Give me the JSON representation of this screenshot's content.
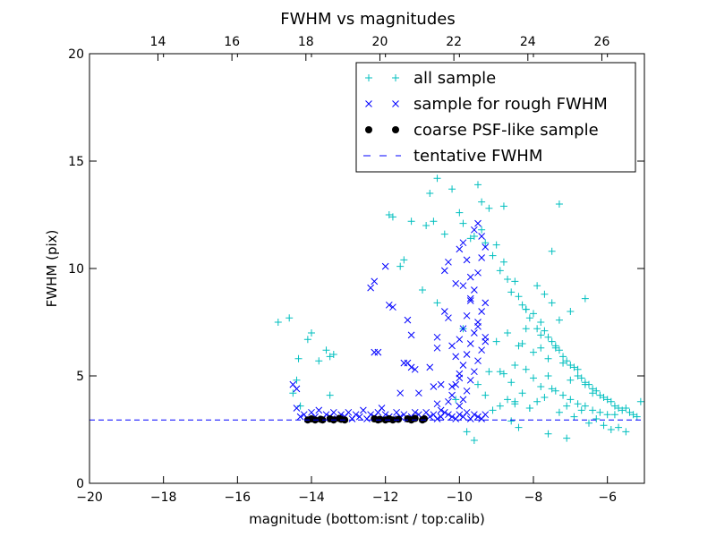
{
  "chart_data": {
    "type": "scatter",
    "title": "FWHM vs magnitudes",
    "xlabel": "magnitude (bottom:isnt / top:calib)",
    "ylabel": "FWHM (pix)",
    "xlim": [
      -20,
      -5
    ],
    "ylim": [
      0,
      20
    ],
    "x_ticks": [
      -20,
      -18,
      -16,
      -14,
      -12,
      -10,
      -8,
      -6
    ],
    "x_tick_labels": [
      "−20",
      "−18",
      "−16",
      "−14",
      "−12",
      "−10",
      "−8",
      "−6"
    ],
    "y_ticks": [
      0,
      5,
      10,
      15,
      20
    ],
    "y_tick_labels": [
      "0",
      "5",
      "10",
      "15",
      "20"
    ],
    "top_axis": {
      "offset": 32.15,
      "ticks": [
        14,
        16,
        18,
        20,
        22,
        24,
        26
      ],
      "tick_labels": [
        "14",
        "16",
        "18",
        "20",
        "22",
        "24",
        "26"
      ]
    },
    "grid": false,
    "legend_position": "top-right",
    "series": [
      {
        "name": "all sample",
        "marker": "plus",
        "color": "#00bfbf",
        "x": [
          -14.9,
          -14.6,
          -14.5,
          -14.4,
          -14.35,
          -14.3,
          -14.1,
          -14.0,
          -13.8,
          -13.6,
          -13.5,
          -13.5,
          -13.4,
          -11.9,
          -11.8,
          -11.6,
          -11.5,
          -11.3,
          -10.9,
          -10.8,
          -10.6,
          -10.4,
          -10.2,
          -10.0,
          -9.9,
          -9.8,
          -9.7,
          -9.6,
          -9.5,
          -9.4,
          -9.3,
          -9.2,
          -9.1,
          -9.0,
          -8.9,
          -8.8,
          -8.7,
          -8.6,
          -8.5,
          -8.4,
          -8.3,
          -8.2,
          -8.1,
          -8.0,
          -7.9,
          -7.8,
          -7.7,
          -7.6,
          -7.5,
          -7.4,
          -7.3,
          -7.2,
          -7.1,
          -7.0,
          -6.9,
          -6.8,
          -6.7,
          -6.6,
          -6.5,
          -6.4,
          -6.3,
          -6.2,
          -6.1,
          -6.0,
          -5.9,
          -5.8,
          -5.7,
          -5.6,
          -5.5,
          -5.4,
          -5.3,
          -5.2,
          -5.1,
          -9.2,
          -9.0,
          -8.8,
          -8.6,
          -8.4,
          -8.2,
          -8.0,
          -7.8,
          -7.6,
          -7.4,
          -7.2,
          -7.0,
          -6.8,
          -6.6,
          -6.4,
          -6.2,
          -6.0,
          -5.8,
          -9.3,
          -9.1,
          -8.9,
          -8.7,
          -8.5,
          -8.3,
          -8.1,
          -7.9,
          -7.7,
          -7.5,
          -7.3,
          -7.1,
          -6.9,
          -6.7,
          -6.5,
          -6.3,
          -6.1,
          -5.9,
          -5.7,
          -5.5,
          -8.6,
          -8.4,
          -8.2,
          -8.0,
          -7.8,
          -7.6,
          -7.4,
          -7.2,
          -7.0,
          -6.8,
          -6.6,
          -6.4,
          -8.5,
          -8.1,
          -7.9,
          -7.7,
          -7.5,
          -7.3,
          -8.7,
          -8.3,
          -7.6,
          -7.1,
          -9.6,
          -9.8,
          -10.1,
          -9.5,
          -8.9,
          -8.2,
          -7.5,
          -10.4,
          -10.7,
          -11.0,
          -10.6,
          -9.9,
          -7.8,
          -8.5,
          -6.9,
          -8.0,
          -7.3,
          -8.8,
          -9.4,
          -7.0,
          -6.6
        ],
        "y": [
          7.5,
          7.7,
          4.2,
          4.8,
          5.8,
          3.6,
          6.7,
          7.0,
          5.7,
          6.2,
          5.9,
          4.1,
          6.0,
          12.5,
          12.4,
          10.1,
          10.4,
          12.2,
          12.0,
          13.5,
          14.2,
          15.4,
          13.7,
          12.6,
          12.1,
          16.1,
          11.4,
          11.5,
          13.9,
          13.1,
          11.2,
          12.8,
          10.6,
          11.1,
          9.9,
          10.3,
          9.5,
          8.9,
          9.4,
          8.7,
          8.3,
          8.1,
          7.7,
          7.9,
          7.2,
          7.5,
          7.1,
          6.8,
          6.6,
          6.4,
          6.2,
          5.9,
          5.7,
          5.5,
          5.4,
          5.0,
          4.9,
          4.7,
          4.6,
          4.4,
          4.3,
          4.1,
          4.0,
          3.9,
          3.8,
          3.6,
          3.5,
          3.4,
          3.5,
          3.3,
          3.2,
          3.1,
          3.8,
          5.2,
          6.6,
          5.1,
          4.7,
          6.4,
          5.3,
          4.9,
          4.5,
          5.0,
          4.3,
          4.1,
          3.9,
          3.7,
          3.6,
          3.4,
          3.3,
          3.2,
          3.2,
          4.1,
          3.4,
          3.6,
          3.9,
          3.7,
          4.2,
          3.5,
          3.8,
          4.0,
          4.4,
          3.3,
          3.6,
          3.1,
          3.4,
          2.8,
          3.0,
          2.7,
          2.5,
          2.6,
          2.4,
          2.9,
          2.6,
          7.2,
          6.1,
          6.9,
          5.8,
          6.3,
          5.6,
          4.8,
          5.3,
          4.6,
          4.2,
          3.8,
          3.5,
          9.2,
          8.8,
          8.4,
          7.6,
          7.0,
          6.5,
          2.3,
          2.1,
          2.0,
          2.4,
          3.9,
          4.6,
          5.2,
          8.1,
          10.8,
          11.6,
          12.2,
          9.0,
          8.4,
          7.2,
          6.3,
          5.5,
          16.5,
          17.1,
          13.0,
          12.9,
          11.8,
          8.0,
          8.6
        ]
      },
      {
        "name": "sample for rough FWHM",
        "marker": "x",
        "color": "#0000ff",
        "x": [
          -14.4,
          -14.3,
          -14.2,
          -14.1,
          -14.0,
          -13.9,
          -13.8,
          -13.7,
          -13.6,
          -13.5,
          -13.4,
          -13.3,
          -13.2,
          -13.1,
          -13.0,
          -12.9,
          -12.8,
          -12.7,
          -12.6,
          -12.5,
          -12.4,
          -12.3,
          -12.2,
          -12.1,
          -12.0,
          -11.9,
          -11.8,
          -11.7,
          -11.6,
          -11.5,
          -11.4,
          -11.3,
          -11.2,
          -11.1,
          -11.0,
          -10.9,
          -10.8,
          -10.7,
          -10.6,
          -10.5,
          -10.4,
          -10.3,
          -10.2,
          -10.1,
          -10.0,
          -9.9,
          -9.8,
          -9.7,
          -9.6,
          -9.5,
          -9.4,
          -9.3,
          -12.4,
          -12.3,
          -12.2,
          -12.0,
          -11.9,
          -11.8,
          -11.5,
          -11.4,
          -11.3,
          -11.2,
          -11.1,
          -10.8,
          -10.6,
          -10.5,
          -10.4,
          -10.3,
          -10.2,
          -10.1,
          -10.0,
          -9.9,
          -9.8,
          -9.7,
          -9.6,
          -9.5,
          -9.4,
          -10.2,
          -10.1,
          -10.0,
          -9.9,
          -9.8,
          -9.7,
          -9.6,
          -9.5,
          -9.4,
          -9.3,
          -10.3,
          -10.2,
          -10.1,
          -10.0,
          -9.9,
          -9.8,
          -9.7,
          -9.6,
          -9.5,
          -9.4,
          -9.3,
          -10.0,
          -9.9,
          -9.8,
          -9.7,
          -9.6,
          -9.5,
          -9.4,
          -9.3,
          -10.4,
          -10.3,
          -9.9,
          -9.7,
          -9.5,
          -9.3,
          -14.5,
          -14.4,
          -12.3,
          -11.4,
          -11.3,
          -11.6,
          -10.7,
          -10.6,
          -10.5,
          -10.6,
          -10.0
        ],
        "y": [
          3.5,
          3.1,
          3.2,
          3.0,
          3.3,
          3.1,
          3.4,
          3.0,
          3.2,
          3.1,
          3.3,
          3.0,
          3.2,
          3.1,
          3.3,
          3.0,
          3.2,
          3.1,
          3.4,
          3.0,
          3.2,
          3.1,
          3.3,
          3.5,
          3.2,
          3.1,
          3.0,
          3.3,
          3.1,
          3.2,
          3.0,
          3.1,
          3.3,
          3.2,
          3.0,
          3.3,
          3.1,
          3.2,
          3.0,
          3.1,
          3.3,
          3.2,
          3.1,
          3.0,
          3.2,
          3.1,
          3.3,
          3.0,
          3.2,
          3.1,
          3.0,
          3.2,
          9.1,
          9.4,
          6.1,
          10.1,
          8.3,
          8.2,
          5.6,
          7.6,
          6.9,
          5.3,
          4.2,
          5.4,
          6.3,
          4.6,
          8.0,
          7.7,
          6.4,
          9.3,
          10.9,
          11.2,
          10.4,
          9.6,
          11.8,
          12.1,
          11.5,
          4.5,
          5.9,
          6.7,
          7.2,
          7.8,
          8.5,
          9.0,
          9.8,
          10.5,
          11.0,
          3.8,
          4.1,
          4.6,
          5.1,
          5.5,
          6.0,
          6.5,
          7.0,
          7.5,
          8.0,
          8.4,
          3.6,
          3.9,
          4.3,
          4.8,
          5.2,
          5.7,
          6.2,
          6.6,
          9.9,
          10.3,
          9.2,
          8.6,
          7.3,
          6.8,
          4.6,
          4.4,
          6.1,
          5.6,
          5.4,
          4.2,
          4.5,
          6.8,
          3.4,
          3.7,
          4.9
        ]
      },
      {
        "name": "coarse PSF-like sample",
        "marker": "dot",
        "color": "#000000",
        "x": [
          -14.1,
          -14.0,
          -13.9,
          -13.75,
          -13.7,
          -13.5,
          -13.4,
          -13.25,
          -13.2,
          -13.1,
          -12.3,
          -12.2,
          -12.15,
          -12.0,
          -11.9,
          -11.8,
          -11.65,
          -11.4,
          -11.3,
          -11.2,
          -11.0,
          -10.95
        ],
        "y": [
          2.95,
          3.0,
          2.95,
          2.98,
          2.95,
          3.0,
          2.95,
          3.02,
          2.98,
          2.95,
          3.0,
          2.95,
          2.98,
          2.95,
          3.0,
          2.95,
          2.98,
          3.0,
          2.95,
          3.02,
          2.95,
          3.0
        ]
      },
      {
        "name": "tentative FWHM",
        "marker": "dashed-line",
        "color": "#0000ff",
        "y_value": 2.95
      }
    ]
  }
}
